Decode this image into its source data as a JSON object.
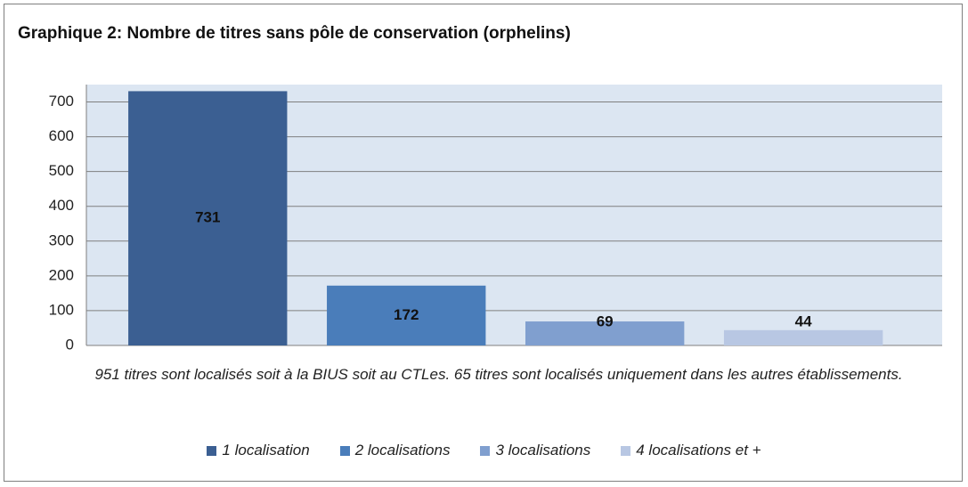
{
  "chart_data": {
    "type": "bar",
    "title": "Graphique 2: Nombre de titres sans pôle de conservation (orphelins)",
    "x_label": "951 titres sont localisés soit à la BIUS soit au CTLes. 65 titres sont localisés uniquement dans les autres établissements.",
    "categories": [
      null
    ],
    "series": [
      {
        "name": "1 localisation",
        "color": "#3b5f92",
        "values": [
          731
        ]
      },
      {
        "name": "2 localisations",
        "color": "#4a7dba",
        "values": [
          172
        ]
      },
      {
        "name": "3 localisations",
        "color": "#809fcf",
        "values": [
          69
        ]
      },
      {
        "name": "4 localisations et +",
        "color": "#b8c7e3",
        "values": [
          44
        ]
      }
    ],
    "ylim": [
      0,
      750
    ],
    "yticks": [
      0,
      100,
      200,
      300,
      400,
      500,
      600,
      700
    ],
    "grid": true,
    "legend": "bottom"
  }
}
